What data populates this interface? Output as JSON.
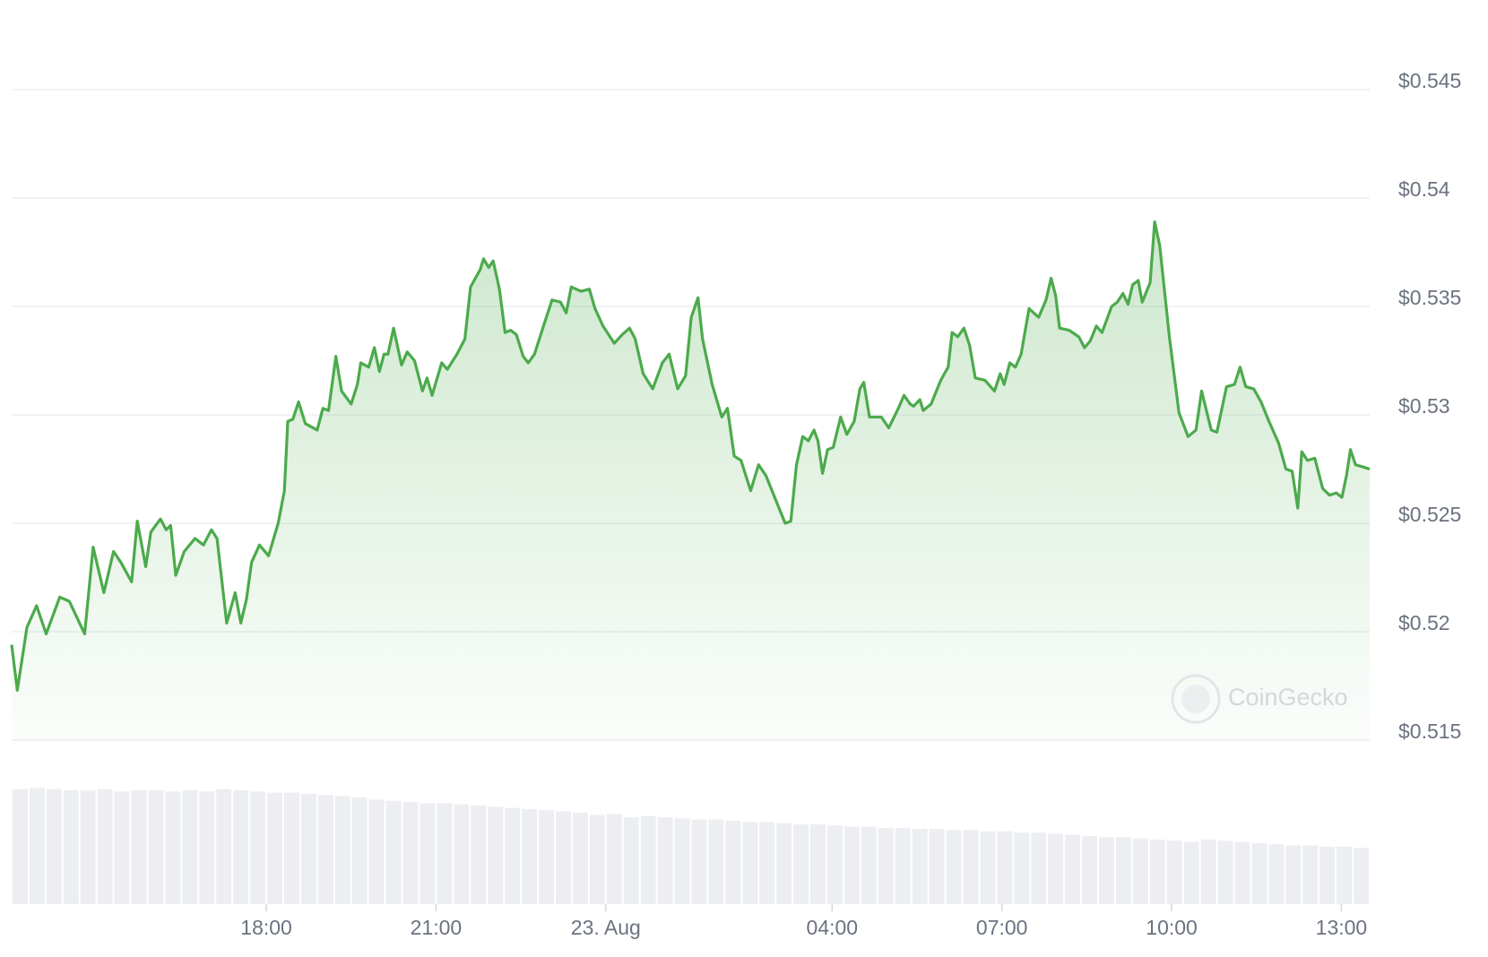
{
  "chart_data": [
    {
      "type": "line",
      "watermark": "CoinGecko",
      "x": [
        13.5,
        13.6,
        13.77,
        13.94,
        14.11,
        14.35,
        14.52,
        14.79,
        14.94,
        15.13,
        15.3,
        15.43,
        15.62,
        15.72,
        15.87,
        15.96,
        16.13,
        16.23,
        16.31,
        16.4,
        16.55,
        16.74,
        16.89,
        17.03,
        17.13,
        17.3,
        17.45,
        17.55,
        17.65,
        17.74,
        17.88,
        18.04,
        18.21,
        18.32,
        18.38,
        18.47,
        18.57,
        18.69,
        18.9,
        19.0,
        19.1,
        19.23,
        19.33,
        19.5,
        19.61,
        19.67,
        19.81,
        19.91,
        20.0,
        20.08,
        20.15,
        20.25,
        20.39,
        20.49,
        20.62,
        20.76,
        20.84,
        20.93,
        21.1,
        21.2,
        21.37,
        21.51,
        21.61,
        21.78,
        21.84,
        21.93,
        22.01,
        22.12,
        22.22,
        22.32,
        22.42,
        22.54,
        22.63,
        22.74,
        22.9,
        23.05,
        23.2,
        23.3,
        23.39,
        23.56,
        23.71,
        23.81,
        23.95,
        24.15,
        24.29,
        24.42,
        24.52,
        24.66,
        24.83,
        25.0,
        25.12,
        25.27,
        25.41,
        25.51,
        25.63,
        25.71,
        25.88,
        26.05,
        26.15,
        26.27,
        26.39,
        26.56,
        26.7,
        26.83,
        27.0,
        27.17,
        27.27,
        27.37,
        27.48,
        27.58,
        27.68,
        27.75,
        27.83,
        27.92,
        28.02,
        28.15,
        28.26,
        28.39,
        28.49,
        28.56,
        28.66,
        28.87,
        29.0,
        29.17,
        29.27,
        29.38,
        29.44,
        29.55,
        29.61,
        29.75,
        29.92,
        30.05,
        30.12,
        30.22,
        30.33,
        30.43,
        30.53,
        30.7,
        30.87,
        30.97,
        31.04,
        31.14,
        31.24,
        31.34,
        31.48,
        31.65,
        31.78,
        31.87,
        31.95,
        32.02,
        32.19,
        32.36,
        32.46,
        32.56,
        32.67,
        32.77,
        32.94,
        33.04,
        33.14,
        33.23,
        33.31,
        33.41,
        33.48,
        33.62,
        33.7,
        33.79,
        33.96,
        34.13,
        34.29,
        34.43,
        34.53,
        34.7,
        34.8,
        34.97,
        35.11,
        35.21,
        35.31,
        35.45,
        35.58,
        35.72,
        35.89,
        36.02,
        36.13,
        36.23,
        36.3,
        36.4,
        36.53,
        36.67,
        36.79,
        36.91,
        37.01,
        37.09,
        37.16,
        37.25,
        37.38,
        37.5
      ],
      "values": [
        0.5194,
        0.5173,
        0.5202,
        0.5212,
        0.5199,
        0.5216,
        0.5214,
        0.5199,
        0.5239,
        0.5218,
        0.5237,
        0.5232,
        0.5223,
        0.5251,
        0.523,
        0.5246,
        0.5252,
        0.5247,
        0.5249,
        0.5226,
        0.5237,
        0.5243,
        0.524,
        0.5247,
        0.5243,
        0.5204,
        0.5218,
        0.5204,
        0.5215,
        0.5232,
        0.524,
        0.5235,
        0.525,
        0.5265,
        0.5297,
        0.5298,
        0.5306,
        0.5296,
        0.5293,
        0.5303,
        0.5302,
        0.5327,
        0.5311,
        0.5305,
        0.5314,
        0.5324,
        0.5322,
        0.5331,
        0.532,
        0.5328,
        0.5328,
        0.534,
        0.5323,
        0.5329,
        0.5325,
        0.5311,
        0.5317,
        0.5309,
        0.5324,
        0.5321,
        0.5328,
        0.5335,
        0.5359,
        0.5367,
        0.5372,
        0.5368,
        0.5371,
        0.5358,
        0.5338,
        0.5339,
        0.5337,
        0.5327,
        0.5324,
        0.5328,
        0.5341,
        0.5353,
        0.5352,
        0.5347,
        0.5359,
        0.5357,
        0.5358,
        0.5349,
        0.5341,
        0.5333,
        0.5337,
        0.534,
        0.5335,
        0.5319,
        0.5312,
        0.5324,
        0.5328,
        0.5312,
        0.5318,
        0.5345,
        0.5354,
        0.5335,
        0.5314,
        0.5299,
        0.5303,
        0.5281,
        0.5279,
        0.5265,
        0.5277,
        0.5272,
        0.5261,
        0.525,
        0.5251,
        0.5277,
        0.529,
        0.5288,
        0.5293,
        0.5288,
        0.5273,
        0.5284,
        0.5285,
        0.5299,
        0.5291,
        0.5297,
        0.5312,
        0.5315,
        0.5299,
        0.5299,
        0.5294,
        0.5303,
        0.5309,
        0.5305,
        0.5304,
        0.5307,
        0.5302,
        0.5305,
        0.5316,
        0.5322,
        0.5338,
        0.5336,
        0.534,
        0.5332,
        0.5317,
        0.5316,
        0.5311,
        0.5319,
        0.5314,
        0.5324,
        0.5322,
        0.5328,
        0.5349,
        0.5345,
        0.5353,
        0.5363,
        0.5355,
        0.534,
        0.5339,
        0.5336,
        0.5331,
        0.5334,
        0.5341,
        0.5338,
        0.535,
        0.5352,
        0.5356,
        0.5351,
        0.536,
        0.5362,
        0.5352,
        0.5361,
        0.5389,
        0.5378,
        0.5336,
        0.5301,
        0.529,
        0.5293,
        0.5311,
        0.5293,
        0.5292,
        0.5313,
        0.5314,
        0.5322,
        0.5313,
        0.5312,
        0.5306,
        0.5297,
        0.5287,
        0.5275,
        0.5274,
        0.5257,
        0.5283,
        0.5279,
        0.528,
        0.5266,
        0.5263,
        0.5264,
        0.5262,
        0.5272,
        0.5284,
        0.5277,
        0.5276,
        0.5275
      ],
      "color": "#4caa4c",
      "xlim": [
        13.5,
        37.5
      ],
      "xticks": [
        {
          "value": 18,
          "label": "18:00"
        },
        {
          "value": 21,
          "label": "21:00"
        },
        {
          "value": 24,
          "label": "23. Aug"
        },
        {
          "value": 28,
          "label": "04:00"
        },
        {
          "value": 31,
          "label": "07:00"
        },
        {
          "value": 34,
          "label": "10:00"
        },
        {
          "value": 37,
          "label": "13:00"
        }
      ],
      "ylim": [
        0.515,
        0.545
      ],
      "yticks": [
        {
          "value": 0.515,
          "label": "$0.515"
        },
        {
          "value": 0.52,
          "label": "$0.52"
        },
        {
          "value": 0.525,
          "label": "$0.525"
        },
        {
          "value": 0.53,
          "label": "$0.53"
        },
        {
          "value": 0.535,
          "label": "$0.535"
        },
        {
          "value": 0.54,
          "label": "$0.54"
        },
        {
          "value": 0.545,
          "label": "$0.545"
        }
      ],
      "grid": true
    },
    {
      "type": "bar",
      "values": [
        98,
        99,
        98,
        97,
        97,
        98,
        96,
        97,
        97,
        96,
        97,
        96,
        98,
        97,
        96,
        95,
        95,
        94,
        93,
        92,
        91,
        89,
        88,
        87,
        86,
        86,
        85,
        84,
        83,
        82,
        81,
        80,
        79,
        78,
        76,
        77,
        74,
        75,
        74,
        73,
        72,
        72,
        71,
        70,
        70,
        69,
        68,
        68,
        67,
        66,
        66,
        65,
        65,
        64,
        64,
        63,
        63,
        62,
        62,
        61,
        61,
        60,
        59,
        58,
        57,
        57,
        56,
        55,
        54,
        53,
        55,
        54,
        53,
        52,
        51,
        50,
        50,
        49,
        49,
        48
      ],
      "color": "#eceef1",
      "ylim": [
        0,
        100
      ]
    }
  ]
}
